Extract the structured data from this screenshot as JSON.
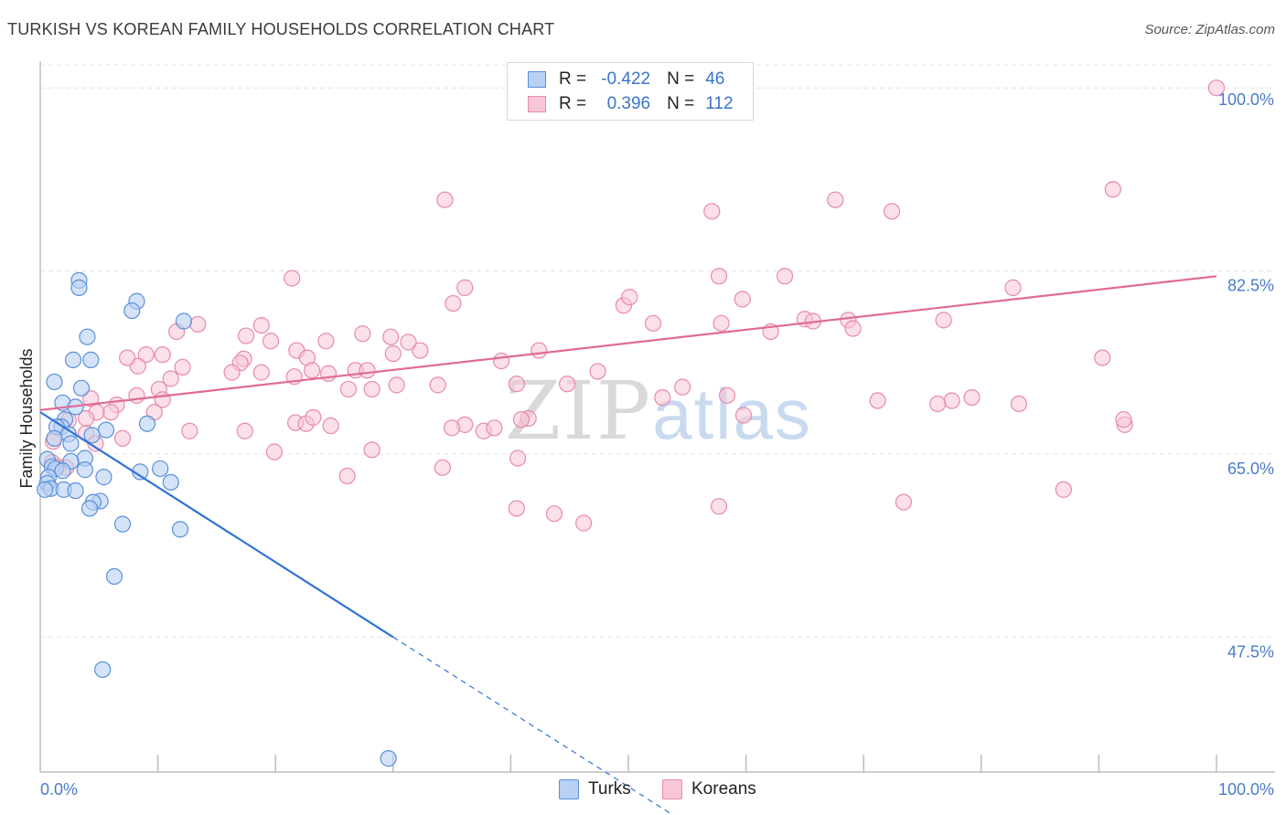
{
  "header": {
    "title": "TURKISH VS KOREAN FAMILY HOUSEHOLDS CORRELATION CHART",
    "source": "Source: ZipAtlas.com"
  },
  "legend": {
    "r_label": "R =",
    "n_label": "N =",
    "rows": [
      {
        "r": "-0.422",
        "n": "46"
      },
      {
        "r": "0.396",
        "n": "112"
      }
    ]
  },
  "bottom_legend": [
    "Turks",
    "Koreans"
  ],
  "watermark": {
    "zip": "ZIP",
    "atlas": "atlas"
  },
  "colors": {
    "turks_fill": "#b7d0f3",
    "turks_stroke": "#5b8fd8",
    "turks_line": "#2f72d6",
    "koreans_fill": "#f7c7d7",
    "koreans_stroke": "#e88aa8",
    "koreans_line": "#e06a96",
    "grid": "#e3e3e3",
    "tick_label": "#4a7cc9"
  },
  "chart_data": {
    "type": "scatter",
    "title": "TURKISH VS KOREAN FAMILY HOUSEHOLDS CORRELATION CHART",
    "xlabel": "",
    "ylabel": "Family Households",
    "xlim": [
      0,
      100
    ],
    "ylim": [
      34.6,
      102.2
    ],
    "x_tick_labels": [
      "0.0%",
      "100.0%"
    ],
    "y_ticks": [
      47.5,
      65.0,
      82.5,
      100.0
    ],
    "y_tick_labels": [
      "47.5%",
      "65.0%",
      "82.5%",
      "100.0%"
    ],
    "grid": true,
    "series": [
      {
        "name": "Turks",
        "r": -0.422,
        "n": 46,
        "points": [
          [
            3.3,
            81.6
          ],
          [
            3.3,
            80.9
          ],
          [
            8.2,
            79.6
          ],
          [
            7.8,
            78.7
          ],
          [
            12.2,
            77.7
          ],
          [
            4.0,
            76.2
          ],
          [
            2.8,
            74.0
          ],
          [
            4.3,
            74.0
          ],
          [
            1.2,
            71.9
          ],
          [
            3.5,
            71.3
          ],
          [
            1.9,
            69.9
          ],
          [
            3.0,
            69.5
          ],
          [
            2.1,
            68.3
          ],
          [
            1.8,
            67.6
          ],
          [
            1.4,
            67.6
          ],
          [
            9.1,
            67.9
          ],
          [
            5.6,
            67.3
          ],
          [
            2.4,
            66.9
          ],
          [
            1.2,
            66.5
          ],
          [
            4.4,
            66.8
          ],
          [
            2.6,
            66.0
          ],
          [
            3.8,
            64.6
          ],
          [
            0.6,
            64.5
          ],
          [
            2.6,
            64.3
          ],
          [
            1.0,
            63.8
          ],
          [
            1.3,
            63.6
          ],
          [
            3.8,
            63.5
          ],
          [
            1.9,
            63.4
          ],
          [
            8.5,
            63.3
          ],
          [
            10.2,
            63.6
          ],
          [
            5.4,
            62.8
          ],
          [
            0.7,
            62.8
          ],
          [
            0.6,
            62.2
          ],
          [
            11.1,
            62.3
          ],
          [
            0.9,
            61.7
          ],
          [
            0.4,
            61.6
          ],
          [
            2.0,
            61.6
          ],
          [
            3.0,
            61.5
          ],
          [
            5.1,
            60.5
          ],
          [
            4.5,
            60.4
          ],
          [
            4.2,
            59.8
          ],
          [
            7.0,
            58.3
          ],
          [
            11.9,
            57.8
          ],
          [
            6.3,
            53.3
          ],
          [
            5.3,
            44.4
          ],
          [
            29.6,
            35.9
          ]
        ],
        "trend": {
          "x0": 0,
          "y0": 69.0,
          "x1": 30,
          "y1": 47.5,
          "dash_to_x": 54.2,
          "dash_to_y": 30.2
        }
      },
      {
        "name": "Koreans",
        "r": 0.396,
        "n": 112,
        "points": [
          [
            100.0,
            100.0
          ],
          [
            91.2,
            90.3
          ],
          [
            34.4,
            89.3
          ],
          [
            57.1,
            88.2
          ],
          [
            57.7,
            82.0
          ],
          [
            63.3,
            82.0
          ],
          [
            67.6,
            89.3
          ],
          [
            72.4,
            88.2
          ],
          [
            21.4,
            81.8
          ],
          [
            36.1,
            80.9
          ],
          [
            35.1,
            79.4
          ],
          [
            49.6,
            79.2
          ],
          [
            50.1,
            80.0
          ],
          [
            59.7,
            79.8
          ],
          [
            57.9,
            77.5
          ],
          [
            52.1,
            77.5
          ],
          [
            65.0,
            77.9
          ],
          [
            68.7,
            77.8
          ],
          [
            69.1,
            77.0
          ],
          [
            62.1,
            76.7
          ],
          [
            65.7,
            77.7
          ],
          [
            76.8,
            77.8
          ],
          [
            82.7,
            80.9
          ],
          [
            27.4,
            76.5
          ],
          [
            29.8,
            76.2
          ],
          [
            24.3,
            75.8
          ],
          [
            21.8,
            74.9
          ],
          [
            17.5,
            76.3
          ],
          [
            11.6,
            76.7
          ],
          [
            13.4,
            77.4
          ],
          [
            18.8,
            77.3
          ],
          [
            19.6,
            75.8
          ],
          [
            22.7,
            74.2
          ],
          [
            30.0,
            74.6
          ],
          [
            32.3,
            74.9
          ],
          [
            31.3,
            75.7
          ],
          [
            42.4,
            74.9
          ],
          [
            17.3,
            74.1
          ],
          [
            9.0,
            74.5
          ],
          [
            10.4,
            74.5
          ],
          [
            8.3,
            73.4
          ],
          [
            12.1,
            73.3
          ],
          [
            7.4,
            74.2
          ],
          [
            17.0,
            73.7
          ],
          [
            23.1,
            73.0
          ],
          [
            26.8,
            73.0
          ],
          [
            27.8,
            73.0
          ],
          [
            16.3,
            72.8
          ],
          [
            18.8,
            72.8
          ],
          [
            11.1,
            72.2
          ],
          [
            21.6,
            72.4
          ],
          [
            24.5,
            72.7
          ],
          [
            39.2,
            73.9
          ],
          [
            47.4,
            72.9
          ],
          [
            44.8,
            71.7
          ],
          [
            30.3,
            71.6
          ],
          [
            33.8,
            71.6
          ],
          [
            40.5,
            71.7
          ],
          [
            26.2,
            71.2
          ],
          [
            28.2,
            71.2
          ],
          [
            10.1,
            71.2
          ],
          [
            8.2,
            70.6
          ],
          [
            10.4,
            70.2
          ],
          [
            4.3,
            70.3
          ],
          [
            6.5,
            69.7
          ],
          [
            4.8,
            69.0
          ],
          [
            6.0,
            69.0
          ],
          [
            9.7,
            69.0
          ],
          [
            36.1,
            67.8
          ],
          [
            21.7,
            68.0
          ],
          [
            22.6,
            67.9
          ],
          [
            23.2,
            68.5
          ],
          [
            24.7,
            67.7
          ],
          [
            35.0,
            67.5
          ],
          [
            37.7,
            67.2
          ],
          [
            38.6,
            67.5
          ],
          [
            41.5,
            68.4
          ],
          [
            40.9,
            68.3
          ],
          [
            59.8,
            68.7
          ],
          [
            54.6,
            71.4
          ],
          [
            52.9,
            70.4
          ],
          [
            58.4,
            70.6
          ],
          [
            77.5,
            70.1
          ],
          [
            79.2,
            70.4
          ],
          [
            71.2,
            70.1
          ],
          [
            3.9,
            67.0
          ],
          [
            4.7,
            66.0
          ],
          [
            7.0,
            66.5
          ],
          [
            17.4,
            67.2
          ],
          [
            1.1,
            66.2
          ],
          [
            2.4,
            68.2
          ],
          [
            3.9,
            68.4
          ],
          [
            12.7,
            67.2
          ],
          [
            28.2,
            65.4
          ],
          [
            19.9,
            65.2
          ],
          [
            34.2,
            63.7
          ],
          [
            26.1,
            62.9
          ],
          [
            40.6,
            64.6
          ],
          [
            43.7,
            59.3
          ],
          [
            40.5,
            59.8
          ],
          [
            46.2,
            58.4
          ],
          [
            57.7,
            60.0
          ],
          [
            73.4,
            60.4
          ],
          [
            76.3,
            69.8
          ],
          [
            83.2,
            69.8
          ],
          [
            90.3,
            74.2
          ],
          [
            92.2,
            67.8
          ],
          [
            87.0,
            61.6
          ],
          [
            92.1,
            68.3
          ],
          [
            1.5,
            63.8
          ],
          [
            1.0,
            64.2
          ],
          [
            2.2,
            63.7
          ]
        ],
        "trend": {
          "x0": 0,
          "y0": 69.2,
          "x1": 100,
          "y1": 82.0
        }
      }
    ]
  }
}
